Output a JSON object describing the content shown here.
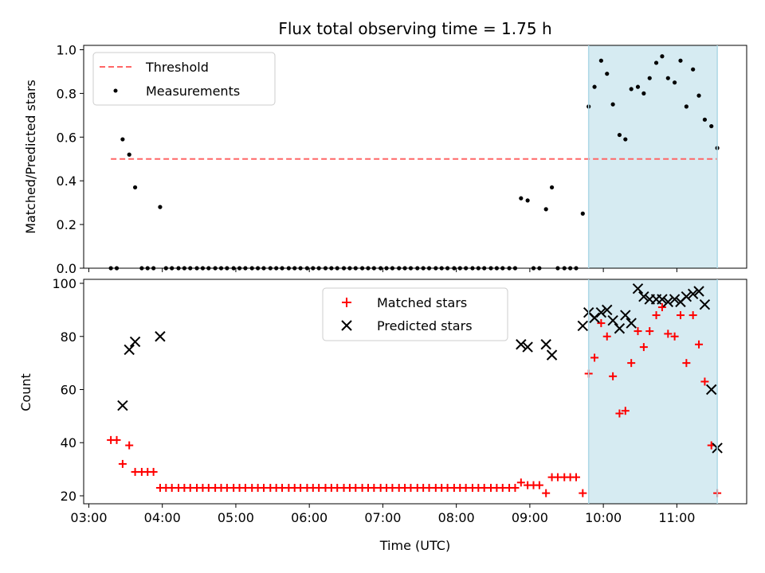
{
  "chart_data": {
    "title": "Flux total observing time = 1.75 h",
    "xlabel": "Time (UTC)",
    "xlim_hours": [
      2.93,
      11.95
    ],
    "xticks": [
      {
        "v": 3,
        "label": "03:00"
      },
      {
        "v": 4,
        "label": "04:00"
      },
      {
        "v": 5,
        "label": "05:00"
      },
      {
        "v": 6,
        "label": "06:00"
      },
      {
        "v": 7,
        "label": "07:00"
      },
      {
        "v": 8,
        "label": "08:00"
      },
      {
        "v": 9,
        "label": "09:00"
      },
      {
        "v": 10,
        "label": "10:00"
      },
      {
        "v": 11,
        "label": "11:00"
      }
    ],
    "shaded_span_hours": [
      9.8,
      11.55
    ],
    "shade_color": "#add8e6",
    "panels": [
      {
        "type": "scatter",
        "ylabel": "Matched/Predicted stars",
        "ylim": [
          0,
          1.02
        ],
        "yticks": [
          {
            "v": 0,
            "label": "0.0"
          },
          {
            "v": 0.2,
            "label": "0.2"
          },
          {
            "v": 0.4,
            "label": "0.4"
          },
          {
            "v": 0.6,
            "label": "0.6"
          },
          {
            "v": 0.8,
            "label": "0.8"
          },
          {
            "v": 1.0,
            "label": "1.0"
          }
        ],
        "legend_position": "upper-left",
        "threshold": {
          "name": "Threshold",
          "y": 0.5,
          "x": [
            3.3,
            11.55
          ],
          "color": "#ff6666",
          "style": "dashed"
        },
        "series": [
          {
            "name": "Measurements",
            "marker": "dot",
            "color": "#000000",
            "x": [
              3.3,
              3.38,
              3.46,
              3.55,
              3.63,
              3.72,
              3.8,
              3.88,
              3.97,
              4.05,
              4.13,
              4.22,
              4.3,
              4.38,
              4.47,
              4.55,
              4.63,
              4.72,
              4.8,
              4.88,
              4.97,
              5.05,
              5.13,
              5.22,
              5.3,
              5.38,
              5.47,
              5.55,
              5.63,
              5.72,
              5.8,
              5.88,
              5.97,
              6.05,
              6.13,
              6.22,
              6.3,
              6.38,
              6.47,
              6.55,
              6.63,
              6.72,
              6.8,
              6.88,
              6.97,
              7.05,
              7.13,
              7.22,
              7.3,
              7.38,
              7.47,
              7.55,
              7.63,
              7.72,
              7.8,
              7.88,
              7.97,
              8.05,
              8.13,
              8.22,
              8.3,
              8.38,
              8.47,
              8.55,
              8.63,
              8.72,
              8.8,
              8.88,
              8.97,
              9.05,
              9.13,
              9.22,
              9.3,
              9.38,
              9.47,
              9.55,
              9.63,
              9.72,
              9.8,
              9.88,
              9.97,
              10.05,
              10.13,
              10.22,
              10.3,
              10.38,
              10.47,
              10.55,
              10.63,
              10.72,
              10.8,
              10.88,
              10.97,
              11.05,
              11.13,
              11.22,
              11.3,
              11.38,
              11.47,
              11.55
            ],
            "y": [
              0,
              0,
              0.59,
              0.52,
              0.37,
              0,
              0,
              0,
              0.28,
              0,
              0,
              0,
              0,
              0,
              0,
              0,
              0,
              0,
              0,
              0,
              0,
              0,
              0,
              0,
              0,
              0,
              0,
              0,
              0,
              0,
              0,
              0,
              0,
              0,
              0,
              0,
              0,
              0,
              0,
              0,
              0,
              0,
              0,
              0,
              0,
              0,
              0,
              0,
              0,
              0,
              0,
              0,
              0,
              0,
              0,
              0,
              0,
              0,
              0,
              0,
              0,
              0,
              0,
              0,
              0,
              0,
              0,
              0.32,
              0.31,
              0,
              0,
              0.27,
              0.37,
              0,
              0,
              0,
              0,
              0.25,
              0.74,
              0.83,
              0.95,
              0.89,
              0.75,
              0.61,
              0.59,
              0.82,
              0.83,
              0.8,
              0.87,
              0.94,
              0.97,
              0.87,
              0.85,
              0.95,
              0.74,
              0.91,
              0.79,
              0.68,
              0.65,
              0.55
            ]
          }
        ]
      },
      {
        "type": "scatter",
        "ylabel": "Count",
        "ylim": [
          17,
          101.5
        ],
        "yticks": [
          {
            "v": 20,
            "label": "20"
          },
          {
            "v": 40,
            "label": "40"
          },
          {
            "v": 60,
            "label": "60"
          },
          {
            "v": 80,
            "label": "80"
          },
          {
            "v": 100,
            "label": "100"
          }
        ],
        "legend_position": "upper-center",
        "series": [
          {
            "name": "Matched stars",
            "marker": "plus",
            "color": "#ff0000",
            "x": [
              3.3,
              3.38,
              3.46,
              3.55,
              3.63,
              3.72,
              3.8,
              3.88,
              3.97,
              4.05,
              4.13,
              4.22,
              4.3,
              4.38,
              4.47,
              4.55,
              4.63,
              4.72,
              4.8,
              4.88,
              4.97,
              5.05,
              5.13,
              5.22,
              5.3,
              5.38,
              5.47,
              5.55,
              5.63,
              5.72,
              5.8,
              5.88,
              5.97,
              6.05,
              6.13,
              6.22,
              6.3,
              6.38,
              6.47,
              6.55,
              6.63,
              6.72,
              6.8,
              6.88,
              6.97,
              7.05,
              7.13,
              7.22,
              7.3,
              7.38,
              7.47,
              7.55,
              7.63,
              7.72,
              7.8,
              7.88,
              7.97,
              8.05,
              8.13,
              8.22,
              8.3,
              8.38,
              8.47,
              8.55,
              8.63,
              8.72,
              8.8,
              8.88,
              8.97,
              9.05,
              9.13,
              9.22,
              9.3,
              9.38,
              9.47,
              9.55,
              9.63,
              9.72,
              9.8,
              9.88,
              9.97,
              10.05,
              10.13,
              10.22,
              10.3,
              10.38,
              10.47,
              10.55,
              10.63,
              10.72,
              10.8,
              10.88,
              10.97,
              11.05,
              11.13,
              11.22,
              11.3,
              11.38,
              11.47,
              11.55
            ],
            "y": [
              41,
              41,
              32,
              39,
              29,
              29,
              29,
              29,
              23,
              23,
              23,
              23,
              23,
              23,
              23,
              23,
              23,
              23,
              23,
              23,
              23,
              23,
              23,
              23,
              23,
              23,
              23,
              23,
              23,
              23,
              23,
              23,
              23,
              23,
              23,
              23,
              23,
              23,
              23,
              23,
              23,
              23,
              23,
              23,
              23,
              23,
              23,
              23,
              23,
              23,
              23,
              23,
              23,
              23,
              23,
              23,
              23,
              23,
              23,
              23,
              23,
              23,
              23,
              23,
              23,
              23,
              23,
              25,
              24,
              24,
              24,
              21,
              27,
              27,
              27,
              27,
              27,
              21,
              66,
              72,
              85,
              80,
              65,
              51,
              52,
              70,
              82,
              76,
              82,
              88,
              91,
              81,
              80,
              88,
              70,
              88,
              77,
              63,
              39,
              21
            ]
          },
          {
            "name": "Predicted stars",
            "marker": "x",
            "color": "#000000",
            "x": [
              3.46,
              3.55,
              3.63,
              3.97,
              8.88,
              8.97,
              9.22,
              9.3,
              9.72,
              9.8,
              9.88,
              9.97,
              10.05,
              10.13,
              10.22,
              10.3,
              10.38,
              10.47,
              10.55,
              10.63,
              10.72,
              10.8,
              10.88,
              10.97,
              11.05,
              11.13,
              11.22,
              11.3,
              11.38,
              11.47,
              11.55
            ],
            "y": [
              54,
              75,
              78,
              80,
              77,
              76,
              77,
              73,
              84,
              89,
              87,
              89,
              90,
              86,
              83,
              88,
              85,
              98,
              95,
              94,
              94,
              94,
              93,
              94,
              93,
              95,
              96,
              97,
              92,
              60,
              38
            ]
          }
        ]
      }
    ]
  }
}
